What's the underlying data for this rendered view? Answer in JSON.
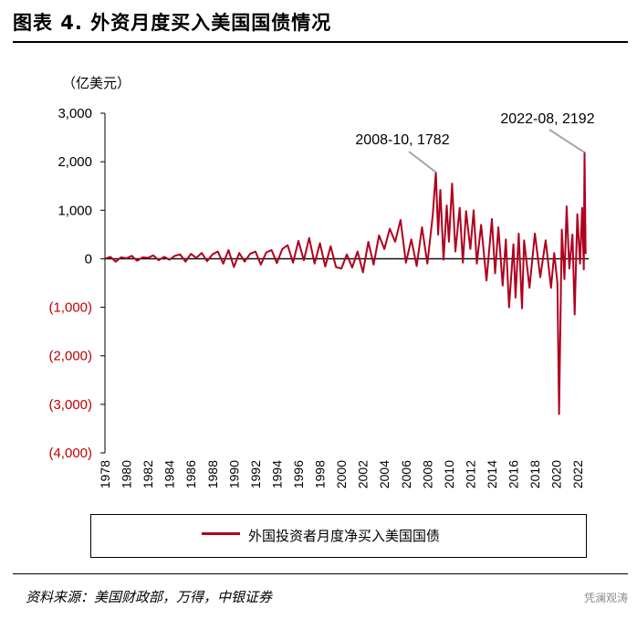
{
  "title": "图表 4. 外资月度买入美国国债情况",
  "source": "资料来源：美国财政部，万得，中银证券",
  "watermark": "凭澜观涛",
  "colors": {
    "series": "#b0001e",
    "negative_tick": "#c00000",
    "annotation_line": "#a6a6a6"
  },
  "chart_data": {
    "type": "line",
    "unit_label": "（亿美元）",
    "ylim": [
      -4000,
      3000
    ],
    "y_ticks": [
      3000,
      2000,
      1000,
      0,
      -1000,
      -2000,
      -3000,
      -4000
    ],
    "y_tick_labels": [
      "3,000",
      "2,000",
      "1,000",
      "0",
      "(1,000)",
      "(2,000)",
      "(3,000)",
      "(4,000)"
    ],
    "x_range": [
      1978,
      2023
    ],
    "x_tick_labels": [
      "1978",
      "1980",
      "1982",
      "1984",
      "1986",
      "1988",
      "1990",
      "1992",
      "1994",
      "1996",
      "1998",
      "2000",
      "2002",
      "2004",
      "2006",
      "2008",
      "2010",
      "2012",
      "2014",
      "2016",
      "2018",
      "2020",
      "2022"
    ],
    "legend": {
      "position": "bottom",
      "entries": [
        "外国投资者月度净买入美国国债"
      ]
    },
    "annotations": [
      {
        "label": "2008-10, 1782",
        "x": 2008.79,
        "y": 1782
      },
      {
        "label": "2022-08, 2192",
        "x": 2022.62,
        "y": 2192
      }
    ],
    "series": [
      {
        "name": "外国投资者月度净买入美国国债",
        "points": [
          [
            1978.0,
            0
          ],
          [
            1978.5,
            40
          ],
          [
            1979.0,
            -60
          ],
          [
            1979.5,
            30
          ],
          [
            1980.0,
            10
          ],
          [
            1980.5,
            60
          ],
          [
            1981.0,
            -40
          ],
          [
            1981.5,
            30
          ],
          [
            1982.0,
            20
          ],
          [
            1982.5,
            70
          ],
          [
            1983.0,
            -30
          ],
          [
            1983.5,
            40
          ],
          [
            1984.0,
            -20
          ],
          [
            1984.5,
            60
          ],
          [
            1985.0,
            90
          ],
          [
            1985.5,
            -60
          ],
          [
            1986.0,
            100
          ],
          [
            1986.5,
            20
          ],
          [
            1987.0,
            120
          ],
          [
            1987.5,
            -50
          ],
          [
            1988.0,
            90
          ],
          [
            1988.5,
            150
          ],
          [
            1989.0,
            -100
          ],
          [
            1989.5,
            180
          ],
          [
            1990.0,
            -170
          ],
          [
            1990.5,
            120
          ],
          [
            1991.0,
            -60
          ],
          [
            1991.5,
            100
          ],
          [
            1992.0,
            150
          ],
          [
            1992.5,
            -120
          ],
          [
            1993.0,
            130
          ],
          [
            1993.5,
            180
          ],
          [
            1994.0,
            -90
          ],
          [
            1994.5,
            200
          ],
          [
            1995.0,
            280
          ],
          [
            1995.5,
            -80
          ],
          [
            1996.0,
            370
          ],
          [
            1996.5,
            -30
          ],
          [
            1997.0,
            430
          ],
          [
            1997.5,
            -100
          ],
          [
            1998.0,
            320
          ],
          [
            1998.5,
            -160
          ],
          [
            1999.0,
            260
          ],
          [
            1999.5,
            -170
          ],
          [
            2000.0,
            -200
          ],
          [
            2000.5,
            90
          ],
          [
            2001.0,
            -180
          ],
          [
            2001.5,
            150
          ],
          [
            2002.0,
            -280
          ],
          [
            2002.5,
            350
          ],
          [
            2003.0,
            -120
          ],
          [
            2003.5,
            480
          ],
          [
            2004.0,
            200
          ],
          [
            2004.5,
            620
          ],
          [
            2005.0,
            350
          ],
          [
            2005.5,
            800
          ],
          [
            2006.0,
            -80
          ],
          [
            2006.5,
            400
          ],
          [
            2007.0,
            -150
          ],
          [
            2007.5,
            650
          ],
          [
            2008.0,
            -100
          ],
          [
            2008.5,
            900
          ],
          [
            2008.79,
            1782
          ],
          [
            2009.0,
            500
          ],
          [
            2009.2,
            1420
          ],
          [
            2009.5,
            -20
          ],
          [
            2009.8,
            1100
          ],
          [
            2010.0,
            350
          ],
          [
            2010.3,
            1550
          ],
          [
            2010.6,
            150
          ],
          [
            2011.0,
            1050
          ],
          [
            2011.3,
            -80
          ],
          [
            2011.6,
            980
          ],
          [
            2012.0,
            200
          ],
          [
            2012.3,
            1000
          ],
          [
            2012.6,
            -100
          ],
          [
            2013.0,
            700
          ],
          [
            2013.5,
            -450
          ],
          [
            2014.0,
            820
          ],
          [
            2014.3,
            -300
          ],
          [
            2014.6,
            650
          ],
          [
            2015.0,
            -550
          ],
          [
            2015.3,
            400
          ],
          [
            2015.6,
            -1000
          ],
          [
            2016.0,
            300
          ],
          [
            2016.2,
            -800
          ],
          [
            2016.5,
            520
          ],
          [
            2016.8,
            -1020
          ],
          [
            2017.0,
            380
          ],
          [
            2017.5,
            -600
          ],
          [
            2018.0,
            520
          ],
          [
            2018.5,
            -380
          ],
          [
            2019.0,
            380
          ],
          [
            2019.5,
            -600
          ],
          [
            2019.8,
            120
          ],
          [
            2020.1,
            -500
          ],
          [
            2020.25,
            -3200
          ],
          [
            2020.5,
            600
          ],
          [
            2020.75,
            -420
          ],
          [
            2020.95,
            1080
          ],
          [
            2021.2,
            -200
          ],
          [
            2021.5,
            500
          ],
          [
            2021.7,
            -1150
          ],
          [
            2021.95,
            920
          ],
          [
            2022.2,
            -100
          ],
          [
            2022.4,
            1050
          ],
          [
            2022.55,
            -220
          ],
          [
            2022.62,
            2192
          ],
          [
            2022.72,
            100
          ]
        ]
      }
    ]
  }
}
